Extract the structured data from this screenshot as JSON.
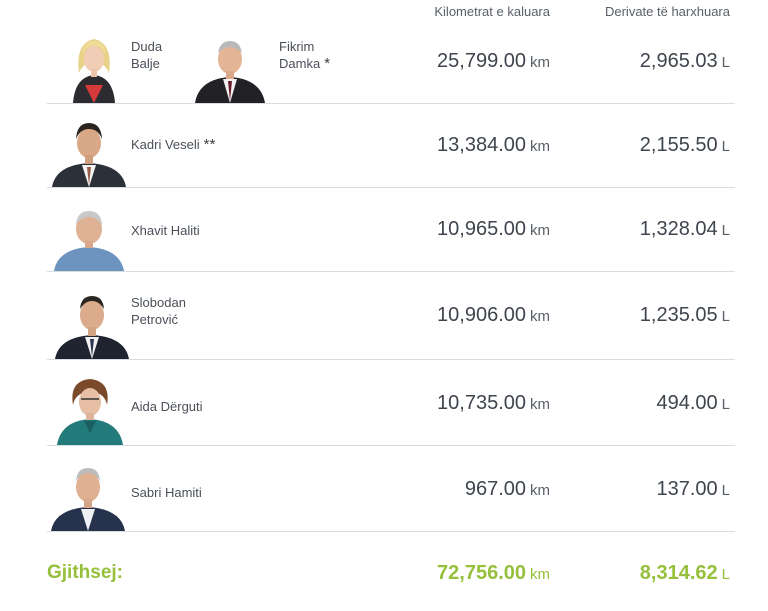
{
  "headers": {
    "km": "Kilometrat e kaluara",
    "fuel": "Derivate të harxhuara"
  },
  "units": {
    "km": "km",
    "fuel": "L"
  },
  "rows": [
    {
      "persons": [
        {
          "name_lines": [
            "Duda",
            "Balje"
          ],
          "stars": ""
        },
        {
          "name_lines": [
            "Fikrim",
            "Damka"
          ],
          "stars": "*"
        }
      ],
      "km": "25,799.00",
      "fuel": "2,965.03"
    },
    {
      "persons": [
        {
          "name_lines": [
            "Kadri Veseli"
          ],
          "stars": "**"
        }
      ],
      "km": "13,384.00",
      "fuel": "2,155.50"
    },
    {
      "persons": [
        {
          "name_lines": [
            "Xhavit Haliti"
          ],
          "stars": ""
        }
      ],
      "km": "10,965.00",
      "fuel": "1,328.04"
    },
    {
      "persons": [
        {
          "name_lines": [
            "Slobodan",
            "Petrović"
          ],
          "stars": ""
        }
      ],
      "km": "10,906.00",
      "fuel": "1,235.05"
    },
    {
      "persons": [
        {
          "name_lines": [
            "Aida Dërguti"
          ],
          "stars": ""
        }
      ],
      "km": "10,735.00",
      "fuel": "494.00"
    },
    {
      "persons": [
        {
          "name_lines": [
            "Sabri Hamiti"
          ],
          "stars": ""
        }
      ],
      "km": "967.00",
      "fuel": "137.00"
    }
  ],
  "total": {
    "label": "Gjithsej:",
    "km": "72,756.00",
    "fuel": "8,314.62"
  },
  "colors": {
    "accent_green": "#96c03c",
    "text": "#3f454d",
    "divider": "#d9dcdf"
  }
}
